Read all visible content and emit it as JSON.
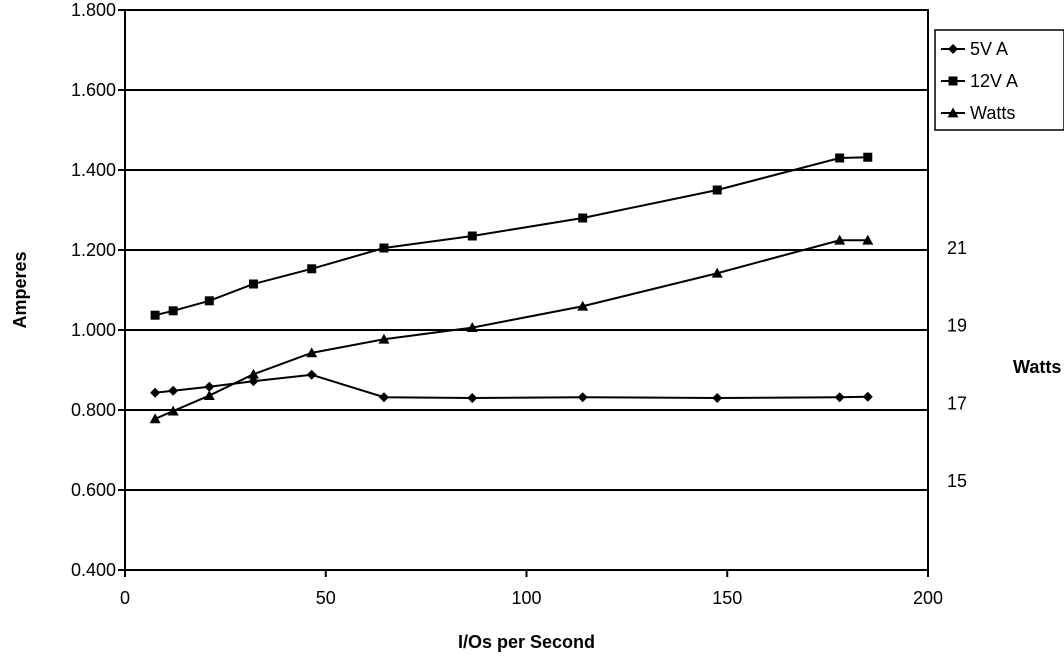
{
  "chart_data": {
    "type": "line",
    "x": [
      7.5,
      12,
      21,
      32,
      46.5,
      64.5,
      86.5,
      114,
      147.5,
      178,
      185
    ],
    "xlabel": "I/Os per Second",
    "ylabel": "Amperes",
    "y2label": "Watts",
    "xlim": [
      0,
      200
    ],
    "xticks": [
      "0",
      "50",
      "100",
      "150",
      "200"
    ],
    "ylim": [
      0.4,
      1.8
    ],
    "yticks": [
      "0.400",
      "0.600",
      "0.800",
      "1.000",
      "1.200",
      "1.400",
      "1.600",
      "1.800"
    ],
    "y2ticks": [
      "15",
      "17",
      "19",
      "21"
    ],
    "grid": "horizontal",
    "legend_position": "top-right",
    "series": [
      {
        "name": "5V A",
        "marker": "diamond",
        "axis": "left",
        "values": [
          0.843,
          0.848,
          0.858,
          0.872,
          0.888,
          0.832,
          0.83,
          0.832,
          0.83,
          0.832,
          0.833
        ]
      },
      {
        "name": "12V A",
        "marker": "square",
        "axis": "left",
        "values": [
          1.037,
          1.048,
          1.073,
          1.115,
          1.153,
          1.205,
          1.235,
          1.28,
          1.35,
          1.43,
          1.432
        ]
      },
      {
        "name": "Watts",
        "marker": "triangle",
        "axis": "right",
        "values": [
          16.6,
          16.8,
          17.2,
          17.75,
          18.3,
          18.65,
          18.95,
          19.5,
          20.35,
          21.2,
          21.2
        ]
      }
    ]
  }
}
